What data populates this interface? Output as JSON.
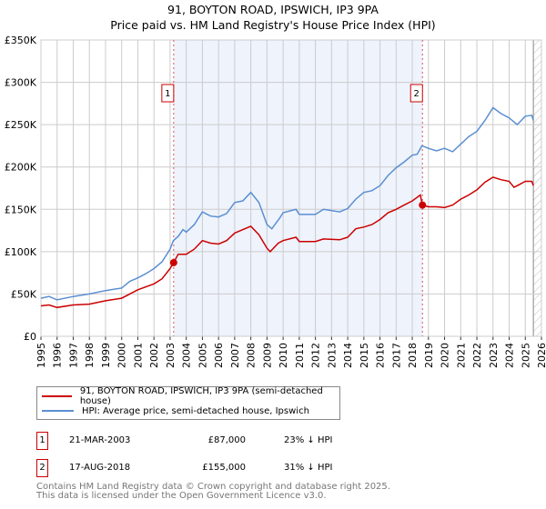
{
  "chart_data": {
    "type": "line",
    "title": "91, BOYTON ROAD, IPSWICH, IP3 9PA",
    "subtitle": "Price paid vs. HM Land Registry's House Price Index (HPI)",
    "xlim": [
      1995,
      2026
    ],
    "ylim": [
      0,
      350000
    ],
    "y_ticks": [
      0,
      50000,
      100000,
      150000,
      200000,
      250000,
      300000,
      350000
    ],
    "y_tick_labels": [
      "£0",
      "£50K",
      "£100K",
      "£150K",
      "£200K",
      "£250K",
      "£300K",
      "£350K"
    ],
    "x_tick_labels": [
      "1995",
      "1996",
      "1997",
      "1998",
      "1999",
      "2000",
      "2001",
      "2002",
      "2003",
      "2004",
      "2005",
      "2006",
      "2007",
      "2008",
      "2009",
      "2010",
      "2011",
      "2012",
      "2013",
      "2014",
      "2015",
      "2016",
      "2017",
      "2018",
      "2019",
      "2020",
      "2021",
      "2022",
      "2023",
      "2024",
      "2025",
      "2026"
    ],
    "grid": true,
    "colors": {
      "property": "#cc0000",
      "hpi": "#5b8fd1",
      "shade": "#eef3fc"
    },
    "series": [
      {
        "name": "91, BOYTON ROAD, IPSWICH, IP3 9PA (semi-detached house)",
        "color": "#cc0000",
        "x": [
          1995,
          1995.5,
          1996,
          1997,
          1998,
          1999,
          2000,
          2000.5,
          2001,
          2002,
          2002.5,
          2003,
          2003.22,
          2003.5,
          2004,
          2004.5,
          2005,
          2005.5,
          2006,
          2006.5,
          2007,
          2008,
          2008.5,
          2009,
          2009.2,
          2009.7,
          2010,
          2010.8,
          2011,
          2012,
          2012.5,
          2013.5,
          2014,
          2014.5,
          2015,
          2015.5,
          2016,
          2016.5,
          2017,
          2017.5,
          2018,
          2018.5,
          2018.63,
          2019,
          2019.5,
          2020,
          2020.5,
          2021,
          2021.5,
          2022,
          2022.5,
          2023,
          2023.5,
          2024,
          2024.3,
          2024.6,
          2025,
          2025.4,
          2025.5
        ],
        "y": [
          36000,
          37000,
          34000,
          37000,
          38000,
          42000,
          45000,
          50000,
          55000,
          62000,
          68000,
          80000,
          87000,
          97000,
          97000,
          103000,
          113000,
          110000,
          109000,
          113000,
          122000,
          130000,
          120000,
          104000,
          100000,
          110000,
          113000,
          117000,
          112000,
          112000,
          115000,
          114000,
          117000,
          127000,
          129000,
          132000,
          138000,
          146000,
          150000,
          155000,
          160000,
          167000,
          155000,
          153000,
          153000,
          152000,
          155000,
          162000,
          167000,
          173000,
          182000,
          188000,
          185000,
          183000,
          176000,
          179000,
          183000,
          183000,
          178000
        ]
      },
      {
        "name": "HPI: Average price, semi-detached house, Ipswich",
        "color": "#5b8fd1",
        "x": [
          1995,
          1995.5,
          1996,
          1997,
          1998,
          1999,
          2000,
          2000.5,
          2001,
          2001.5,
          2002,
          2002.5,
          2003,
          2003.2,
          2003.5,
          2003.8,
          2004,
          2004.5,
          2005,
          2005.5,
          2006,
          2006.5,
          2007,
          2007.5,
          2008,
          2008.5,
          2009,
          2009.3,
          2009.8,
          2010,
          2010.8,
          2011,
          2012,
          2012.5,
          2013.5,
          2014,
          2014.5,
          2015,
          2015.5,
          2016,
          2016.5,
          2017,
          2017.5,
          2018,
          2018.3,
          2018.6,
          2019,
          2019.5,
          2020,
          2020.5,
          2021,
          2021.5,
          2022,
          2022.5,
          2023,
          2023.5,
          2024,
          2024.5,
          2025,
          2025.4,
          2025.5
        ],
        "y": [
          45000,
          47000,
          43000,
          47000,
          50000,
          54000,
          57000,
          65000,
          69000,
          74000,
          80000,
          88000,
          103000,
          113000,
          118000,
          126000,
          123000,
          132000,
          147000,
          142000,
          141000,
          145000,
          158000,
          160000,
          170000,
          158000,
          132000,
          127000,
          140000,
          146000,
          150000,
          144000,
          144000,
          150000,
          147000,
          151000,
          162000,
          170000,
          172000,
          178000,
          190000,
          199000,
          206000,
          214000,
          215000,
          225000,
          222000,
          219000,
          222000,
          218000,
          227000,
          236000,
          242000,
          255000,
          270000,
          263000,
          258000,
          250000,
          260000,
          261000,
          255000
        ]
      }
    ],
    "annotations": [
      {
        "label": "1",
        "x": 2003.22,
        "y": 87000
      },
      {
        "label": "2",
        "x": 2018.63,
        "y": 155000
      }
    ]
  },
  "legend": {
    "property": "91, BOYTON ROAD, IPSWICH, IP3 9PA (semi-detached house)",
    "hpi": "HPI: Average price, semi-detached house, Ipswich"
  },
  "transactions": [
    {
      "num": "1",
      "date": "21-MAR-2003",
      "price": "£87,000",
      "hpi": "23% ↓ HPI"
    },
    {
      "num": "2",
      "date": "17-AUG-2018",
      "price": "£155,000",
      "hpi": "31% ↓ HPI"
    }
  ],
  "footer": {
    "line1": "Contains HM Land Registry data © Crown copyright and database right 2025.",
    "line2": "This data is licensed under the Open Government Licence v3.0."
  }
}
